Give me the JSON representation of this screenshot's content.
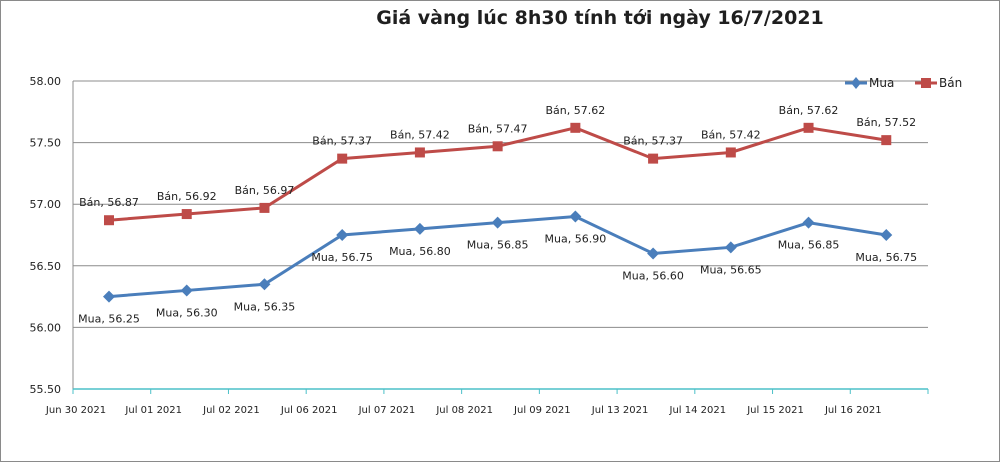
{
  "chart_data": {
    "type": "line",
    "title": "Giá vàng lúc 8h30 tính tới ngày 16/7/2021",
    "categories": [
      "Jun 30 2021",
      "Jul 01 2021",
      "Jul 02 2021",
      "Jul 06 2021",
      "Jul 07 2021",
      "Jul 08 2021",
      "Jul 09 2021",
      "Jul 13 2021",
      "Jul 14 2021",
      "Jul 15 2021",
      "Jul 16 2021"
    ],
    "yticks": [
      "55.50",
      "56.00",
      "56.50",
      "57.00",
      "57.50",
      "58.00"
    ],
    "ylim": [
      55.5,
      58.0
    ],
    "grid": true,
    "legend": "top-right",
    "series": [
      {
        "name": "Mua",
        "color": "#4a7ebb",
        "marker": "diamond",
        "values": [
          56.25,
          56.3,
          56.35,
          56.75,
          56.8,
          56.85,
          56.9,
          56.6,
          56.65,
          56.85,
          56.75
        ]
      },
      {
        "name": "Bán",
        "color": "#be4b48",
        "marker": "square",
        "values": [
          56.87,
          56.92,
          56.97,
          57.37,
          57.42,
          57.47,
          57.62,
          57.37,
          57.42,
          57.62,
          57.52
        ]
      }
    ]
  }
}
